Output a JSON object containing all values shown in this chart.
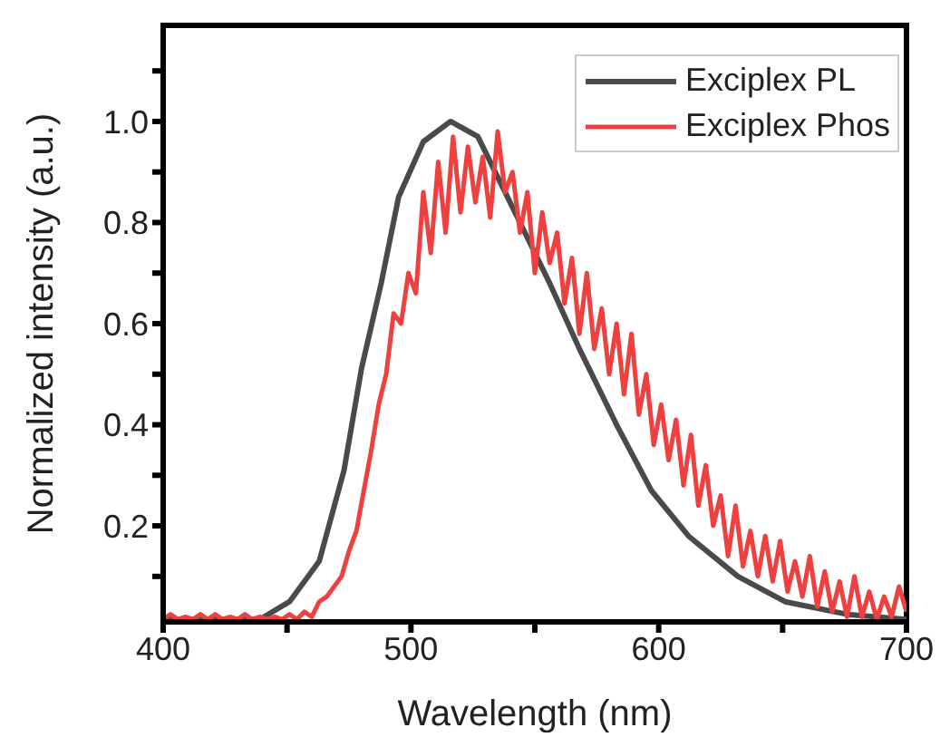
{
  "chart_data": {
    "type": "line",
    "xlabel": "Wavelength (nm)",
    "ylabel": "Normalized intensity (a.u.)",
    "xlim": [
      400,
      700
    ],
    "xticks": [
      400,
      {
        "value": 450,
        "label": null
      },
      500,
      {
        "value": 550,
        "label": null
      },
      600,
      {
        "value": 650,
        "label": null
      },
      700
    ],
    "ylim": [
      0.01,
      1.19
    ],
    "yticks": [
      {
        "value": 0.1,
        "label": null
      },
      0.2,
      {
        "value": 0.3,
        "label": null
      },
      0.4,
      {
        "value": 0.5,
        "label": null
      },
      0.6,
      {
        "value": 0.7,
        "label": null
      },
      0.8,
      {
        "value": 0.9,
        "label": null
      },
      {
        "value": 1.0,
        "label": "1.0"
      },
      {
        "value": 1.1,
        "label": null
      }
    ],
    "grid": false,
    "legend": "top right",
    "marker": "none",
    "line_style": "solid",
    "series": [
      {
        "name": "Exciplex PL",
        "color": "#4a4a4a",
        "x": [
          400,
          439,
          451,
          463,
          473,
          480,
          488,
          495,
          505,
          516,
          527,
          537,
          556,
          568,
          583,
          597,
          612,
          632,
          651,
          676,
          700
        ],
        "values": [
          0.015,
          0.015,
          0.05,
          0.13,
          0.31,
          0.51,
          0.68,
          0.85,
          0.96,
          1.0,
          0.97,
          0.87,
          0.68,
          0.55,
          0.4,
          0.27,
          0.18,
          0.1,
          0.05,
          0.025,
          0.015
        ]
      },
      {
        "name": "Exciplex Phos",
        "color": "#ef4040",
        "x": [
          400,
          403,
          406,
          409,
          412,
          415,
          418,
          421,
          424,
          427,
          430,
          433,
          436,
          439,
          442,
          445,
          448,
          451,
          454,
          457,
          460,
          463,
          466,
          469,
          472,
          475,
          478,
          481,
          484,
          487,
          490,
          493,
          496,
          499,
          502,
          505,
          508,
          511,
          514,
          517,
          520,
          523,
          526,
          529,
          532,
          535,
          538,
          541,
          544,
          547,
          550,
          553,
          556,
          559,
          562,
          565,
          568,
          571,
          574,
          577,
          580,
          583,
          586,
          589,
          592,
          595,
          598,
          601,
          604,
          607,
          610,
          613,
          616,
          619,
          622,
          625,
          628,
          631,
          634,
          637,
          640,
          643,
          646,
          649,
          652,
          655,
          658,
          661,
          664,
          667,
          670,
          673,
          676,
          679,
          682,
          685,
          688,
          691,
          694,
          697,
          700
        ],
        "values": [
          0.015,
          0.025,
          0.015,
          0.02,
          0.015,
          0.025,
          0.015,
          0.025,
          0.015,
          0.02,
          0.015,
          0.025,
          0.015,
          0.02,
          0.015,
          0.02,
          0.015,
          0.025,
          0.015,
          0.03,
          0.02,
          0.05,
          0.06,
          0.08,
          0.1,
          0.15,
          0.19,
          0.27,
          0.35,
          0.44,
          0.5,
          0.62,
          0.6,
          0.7,
          0.66,
          0.86,
          0.74,
          0.92,
          0.78,
          0.97,
          0.82,
          0.95,
          0.84,
          0.93,
          0.81,
          0.98,
          0.86,
          0.9,
          0.78,
          0.86,
          0.7,
          0.82,
          0.72,
          0.78,
          0.64,
          0.73,
          0.58,
          0.7,
          0.55,
          0.63,
          0.5,
          0.6,
          0.46,
          0.58,
          0.42,
          0.5,
          0.36,
          0.44,
          0.33,
          0.41,
          0.28,
          0.38,
          0.24,
          0.32,
          0.2,
          0.26,
          0.14,
          0.24,
          0.12,
          0.19,
          0.1,
          0.18,
          0.09,
          0.17,
          0.07,
          0.13,
          0.06,
          0.14,
          0.04,
          0.11,
          0.03,
          0.09,
          0.02,
          0.1,
          0.02,
          0.07,
          0.015,
          0.06,
          0.02,
          0.08,
          0.03
        ]
      }
    ]
  }
}
